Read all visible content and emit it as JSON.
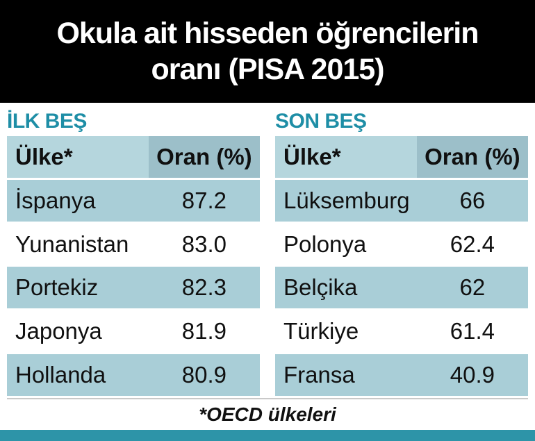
{
  "title": {
    "line1": "Okula ait hisseden öğrencilerin",
    "line2": "oranı (PISA 2015)"
  },
  "sections": [
    {
      "heading": "İLK BEŞ",
      "columns": [
        "Ülke*",
        "Oran (%)"
      ],
      "rows": [
        [
          "İspanya",
          "87.2"
        ],
        [
          "Yunanistan",
          "83.0"
        ],
        [
          "Portekiz",
          "82.3"
        ],
        [
          "Japonya",
          "81.9"
        ],
        [
          "Hollanda",
          "80.9"
        ]
      ]
    },
    {
      "heading": "SON BEŞ",
      "columns": [
        "Ülke*",
        "Oran (%)"
      ],
      "rows": [
        [
          "Lüksemburg",
          "66"
        ],
        [
          "Polonya",
          "62.4"
        ],
        [
          "Belçika",
          "62"
        ],
        [
          "Türkiye",
          "61.4"
        ],
        [
          "Fransa",
          "40.9"
        ]
      ]
    }
  ],
  "footnote": "*OECD ülkeleri",
  "colors": {
    "banner_bg": "#000000",
    "heading_teal": "#1e8ea6",
    "row_light": "#a9ced7",
    "header_country_bg": "#b5d6dd",
    "header_oran_bg": "#9cbfc9",
    "bottom_bar": "#2d94a8"
  },
  "chart_data": {
    "type": "table",
    "title": "Okula ait hisseden öğrencilerin oranı (PISA 2015)",
    "tables": [
      {
        "heading": "İLK BEŞ",
        "columns": [
          "Ülke*",
          "Oran (%)"
        ],
        "rows": [
          [
            "İspanya",
            87.2
          ],
          [
            "Yunanistan",
            83.0
          ],
          [
            "Portekiz",
            82.3
          ],
          [
            "Japonya",
            81.9
          ],
          [
            "Hollanda",
            80.9
          ]
        ]
      },
      {
        "heading": "SON BEŞ",
        "columns": [
          "Ülke*",
          "Oran (%)"
        ],
        "rows": [
          [
            "Lüksemburg",
            66
          ],
          [
            "Polonya",
            62.4
          ],
          [
            "Belçika",
            62
          ],
          [
            "Türkiye",
            61.4
          ],
          [
            "Fransa",
            40.9
          ]
        ]
      }
    ],
    "footnote": "*OECD ülkeleri"
  }
}
